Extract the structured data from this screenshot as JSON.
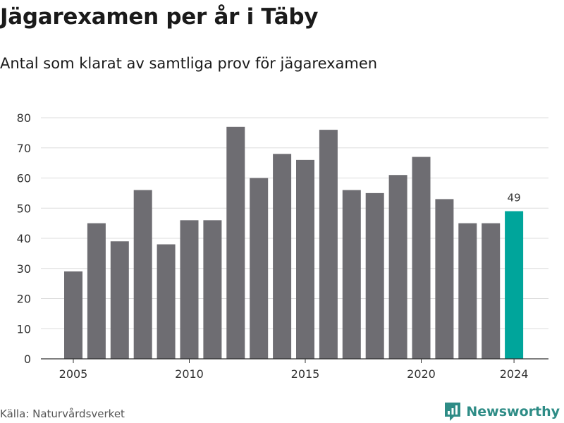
{
  "header": {
    "title": "Jägarexamen per år i Täby",
    "subtitle": "Antal som klarat av samtliga prov för jägarexamen"
  },
  "footer": {
    "source": "Källa: Naturvårdsverket",
    "brand": "Newsworthy",
    "brand_icon": "newsworthy-chart-bubble-icon"
  },
  "colors": {
    "bar": "#6e6d72",
    "highlight": "#00a59b",
    "grid": "#dcdcdc",
    "axis": "#333333",
    "brand": "#2e8c86"
  },
  "chart_data": {
    "type": "bar",
    "categories": [
      "2005",
      "2006",
      "2007",
      "2008",
      "2009",
      "2010",
      "2011",
      "2012",
      "2013",
      "2014",
      "2015",
      "2016",
      "2017",
      "2018",
      "2019",
      "2020",
      "2021",
      "2022",
      "2023",
      "2024"
    ],
    "values": [
      29,
      45,
      39,
      56,
      38,
      46,
      46,
      77,
      60,
      68,
      66,
      76,
      56,
      55,
      61,
      67,
      53,
      45,
      45,
      49
    ],
    "highlight_index": 19,
    "data_labels": [
      {
        "index": 19,
        "text": "49"
      }
    ],
    "x_tick_labels": [
      "2005",
      "2010",
      "2015",
      "2020",
      "2024"
    ],
    "y_ticks": [
      0,
      10,
      20,
      30,
      40,
      50,
      60,
      70,
      80
    ],
    "ylim": [
      0,
      80
    ],
    "grid": true,
    "legend": "none",
    "xlabel": "",
    "ylabel": ""
  }
}
